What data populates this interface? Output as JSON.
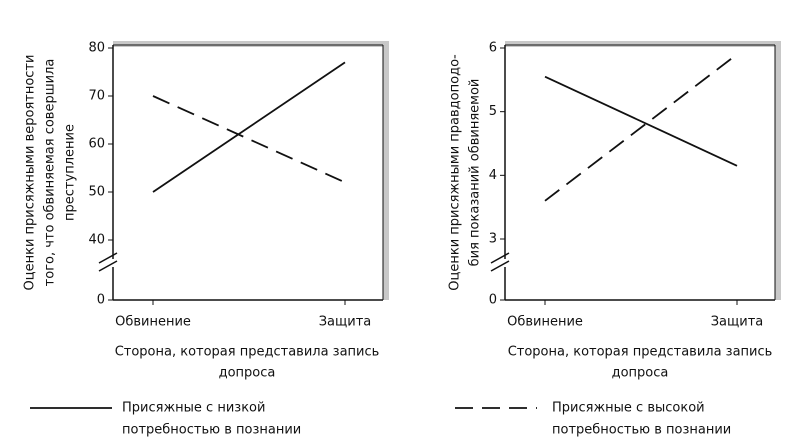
{
  "chart_data": [
    {
      "type": "line",
      "axis_break": true,
      "ylabel": [
        "Оценки присяжными вероятности",
        "того, что обвиняемая совершила",
        "преступление"
      ],
      "xlabel": [
        "Сторона, которая представила запись",
        "допроса"
      ],
      "categories": [
        "Обвинение",
        "Защита"
      ],
      "ylim": [
        0,
        80
      ],
      "yticks": [
        0,
        40,
        50,
        60,
        70,
        80
      ],
      "series": [
        {
          "name": [
            "Присяжные с низкой",
            "потребностью в познании"
          ],
          "color": "#111111",
          "dash": "solid",
          "values": [
            50,
            77
          ]
        },
        {
          "name": [
            "Присяжные с высокой",
            "потребностью в познании"
          ],
          "color": "#111111",
          "dash": "dashed",
          "values": [
            70,
            52
          ]
        }
      ]
    },
    {
      "type": "line",
      "axis_break": true,
      "ylabel": [
        "Оценки присяжными правдоподо-",
        "бия показаний обвиняемой"
      ],
      "xlabel": [
        "Сторона, которая представила запись",
        "допроса"
      ],
      "categories": [
        "Обвинение",
        "Защита"
      ],
      "ylim": [
        0,
        6
      ],
      "yticks": [
        0,
        3,
        4,
        5,
        6
      ],
      "series": [
        {
          "color": "#111111",
          "dash": "solid",
          "values": [
            5.55,
            4.15
          ]
        },
        {
          "color": "#111111",
          "dash": "dashed",
          "values": [
            3.6,
            5.9
          ]
        }
      ]
    }
  ]
}
